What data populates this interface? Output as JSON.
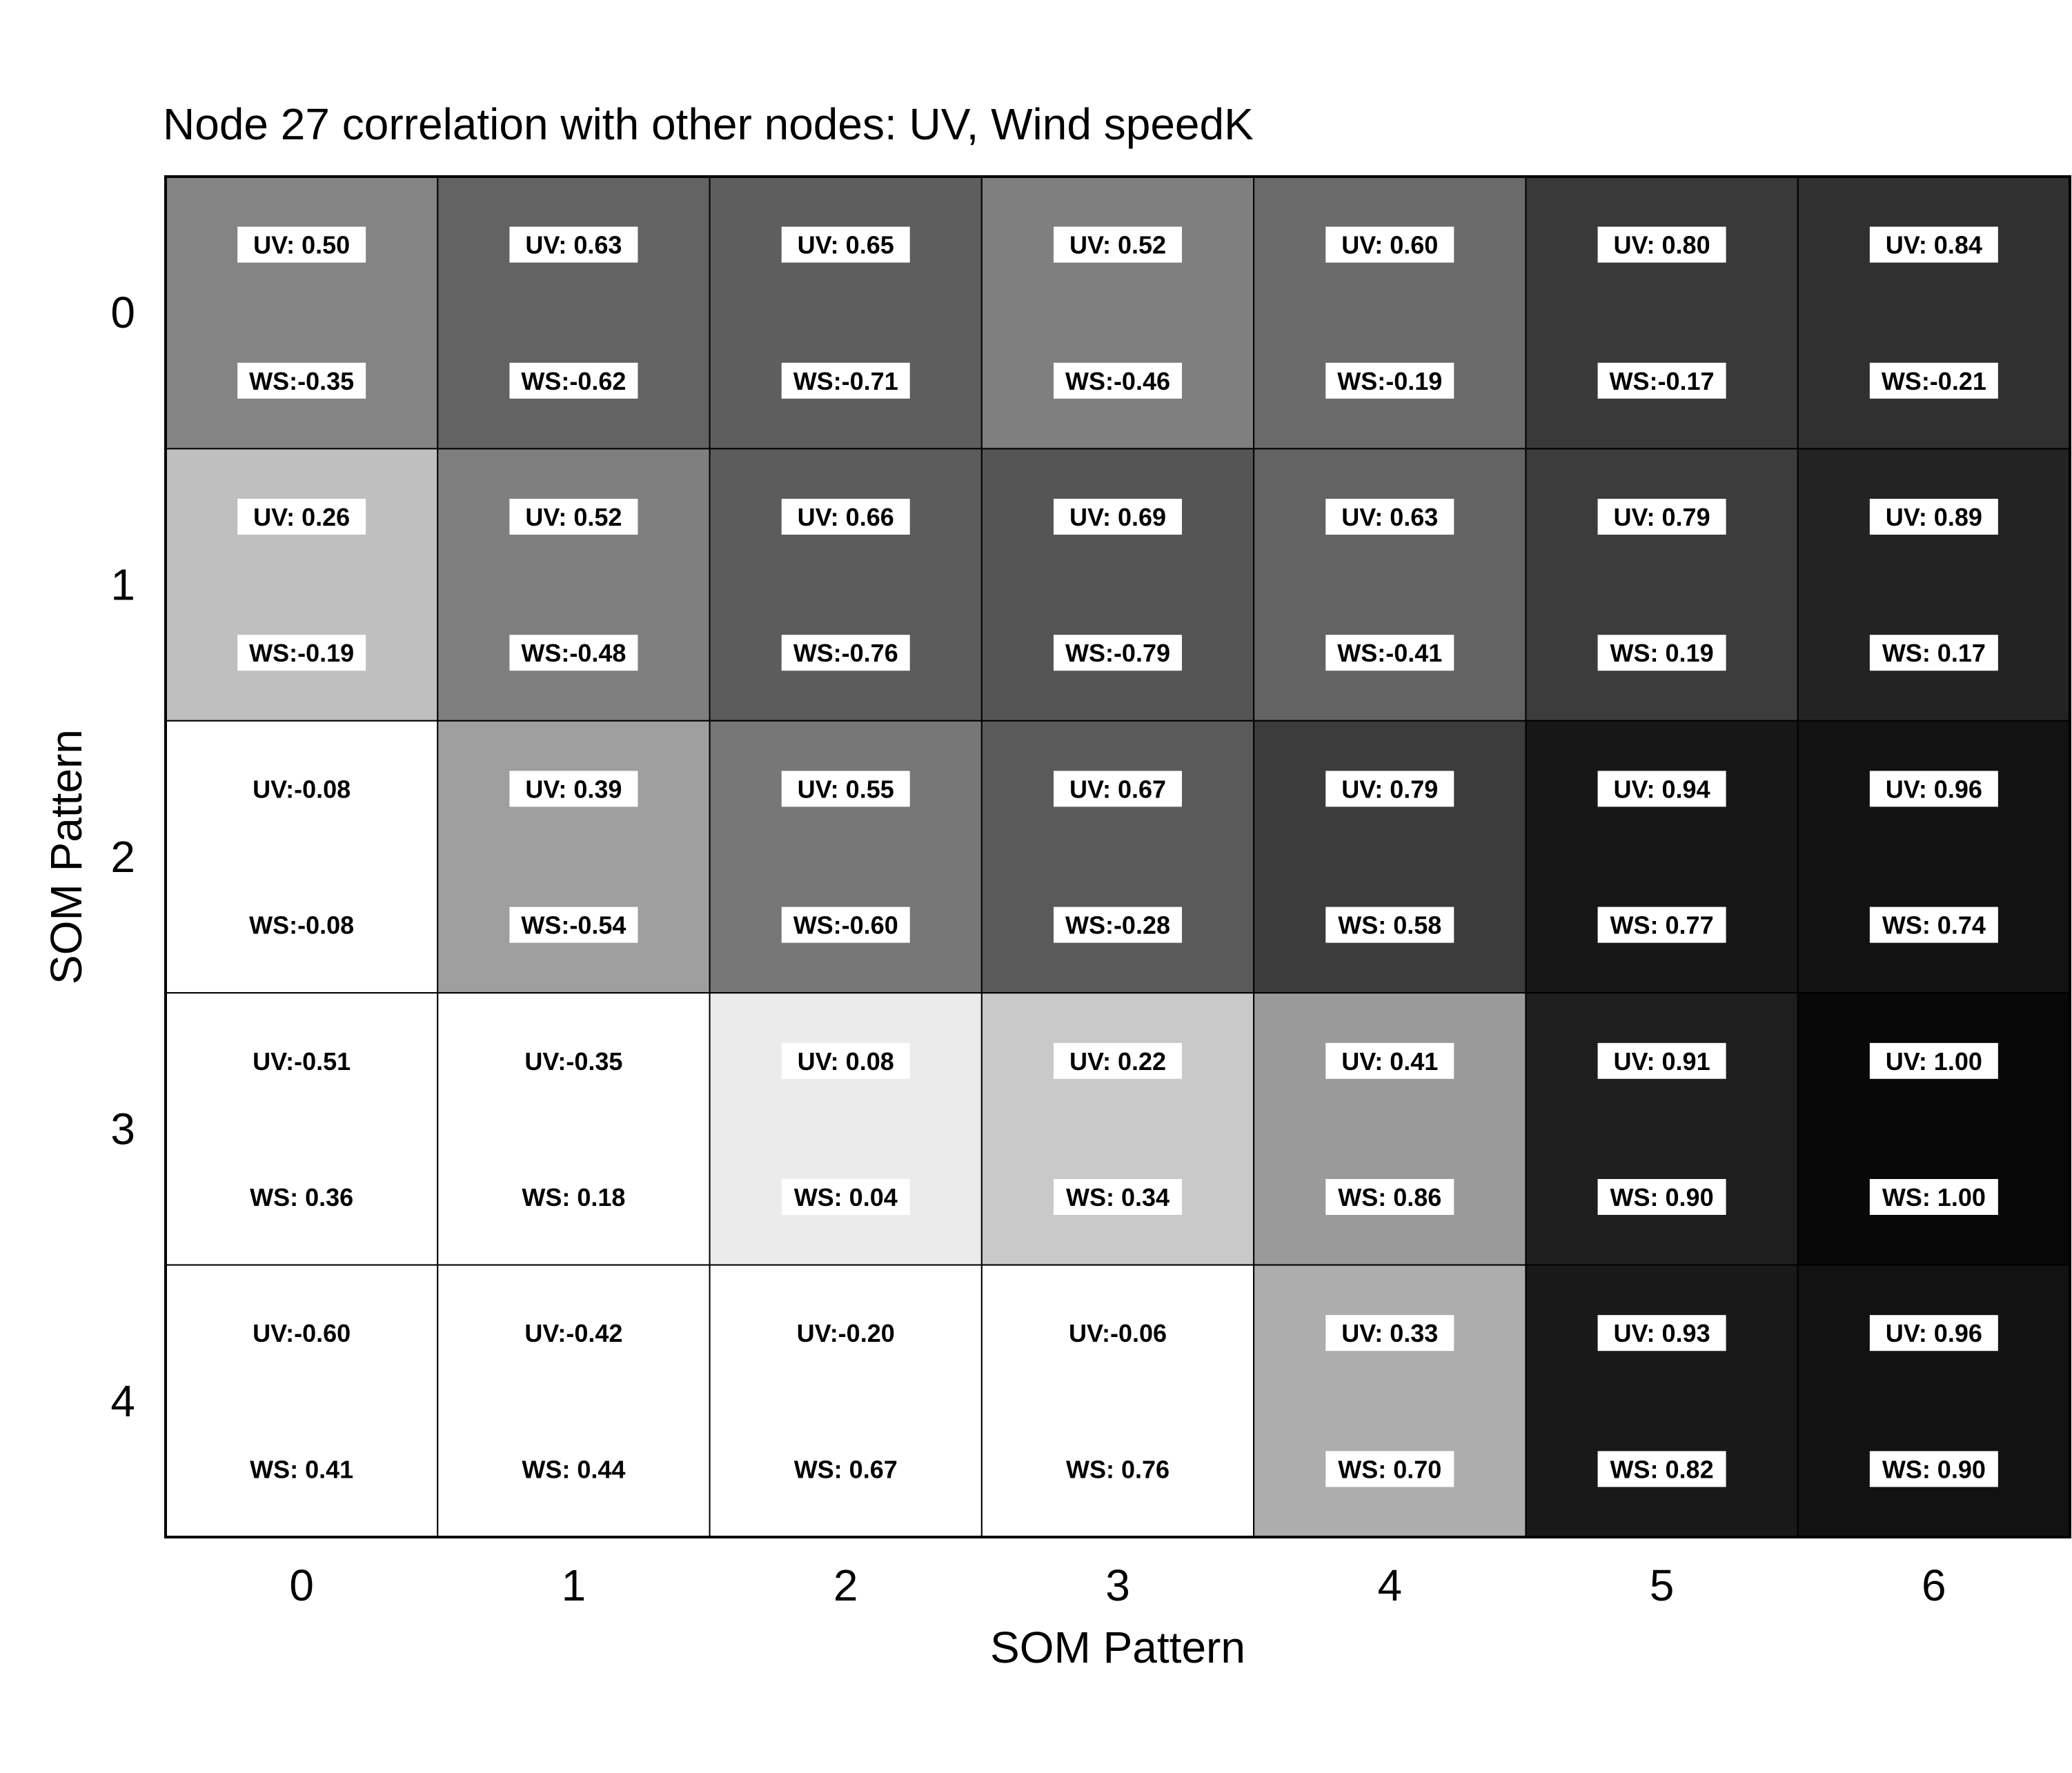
{
  "chart_data": {
    "type": "heatmap",
    "title": "Node 27 correlation with other nodes: UV, Wind speedK",
    "xlabel": "SOM Pattern",
    "ylabel": "SOM Pattern",
    "x_ticks": [
      "0",
      "1",
      "2",
      "3",
      "4",
      "5",
      "6"
    ],
    "y_ticks": [
      "0",
      "1",
      "2",
      "3",
      "4"
    ],
    "colormap": "grayscale, darker = higher UV correlation",
    "rows": [
      {
        "row": "0",
        "cells": [
          {
            "uv": 0.5,
            "ws": -0.35,
            "uv_label": "UV: 0.50",
            "ws_label": "WS:-0.35"
          },
          {
            "uv": 0.63,
            "ws": -0.62,
            "uv_label": "UV: 0.63",
            "ws_label": "WS:-0.62"
          },
          {
            "uv": 0.65,
            "ws": -0.71,
            "uv_label": "UV: 0.65",
            "ws_label": "WS:-0.71"
          },
          {
            "uv": 0.52,
            "ws": -0.46,
            "uv_label": "UV: 0.52",
            "ws_label": "WS:-0.46"
          },
          {
            "uv": 0.6,
            "ws": -0.19,
            "uv_label": "UV: 0.60",
            "ws_label": "WS:-0.19"
          },
          {
            "uv": 0.8,
            "ws": -0.17,
            "uv_label": "UV: 0.80",
            "ws_label": "WS:-0.17"
          },
          {
            "uv": 0.84,
            "ws": -0.21,
            "uv_label": "UV: 0.84",
            "ws_label": "WS:-0.21"
          }
        ]
      },
      {
        "row": "1",
        "cells": [
          {
            "uv": 0.26,
            "ws": -0.19,
            "uv_label": "UV: 0.26",
            "ws_label": "WS:-0.19"
          },
          {
            "uv": 0.52,
            "ws": -0.48,
            "uv_label": "UV: 0.52",
            "ws_label": "WS:-0.48"
          },
          {
            "uv": 0.66,
            "ws": -0.76,
            "uv_label": "UV: 0.66",
            "ws_label": "WS:-0.76"
          },
          {
            "uv": 0.69,
            "ws": -0.79,
            "uv_label": "UV: 0.69",
            "ws_label": "WS:-0.79"
          },
          {
            "uv": 0.63,
            "ws": -0.41,
            "uv_label": "UV: 0.63",
            "ws_label": "WS:-0.41"
          },
          {
            "uv": 0.79,
            "ws": 0.19,
            "uv_label": "UV: 0.79",
            "ws_label": "WS: 0.19"
          },
          {
            "uv": 0.89,
            "ws": 0.17,
            "uv_label": "UV: 0.89",
            "ws_label": "WS: 0.17"
          }
        ]
      },
      {
        "row": "2",
        "cells": [
          {
            "uv": -0.08,
            "ws": -0.08,
            "uv_label": "UV:-0.08",
            "ws_label": "WS:-0.08"
          },
          {
            "uv": 0.39,
            "ws": -0.54,
            "uv_label": "UV: 0.39",
            "ws_label": "WS:-0.54"
          },
          {
            "uv": 0.55,
            "ws": -0.6,
            "uv_label": "UV: 0.55",
            "ws_label": "WS:-0.60"
          },
          {
            "uv": 0.67,
            "ws": -0.28,
            "uv_label": "UV: 0.67",
            "ws_label": "WS:-0.28"
          },
          {
            "uv": 0.79,
            "ws": 0.58,
            "uv_label": "UV: 0.79",
            "ws_label": "WS: 0.58"
          },
          {
            "uv": 0.94,
            "ws": 0.77,
            "uv_label": "UV: 0.94",
            "ws_label": "WS: 0.77"
          },
          {
            "uv": 0.96,
            "ws": 0.74,
            "uv_label": "UV: 0.96",
            "ws_label": "WS: 0.74"
          }
        ]
      },
      {
        "row": "3",
        "cells": [
          {
            "uv": -0.51,
            "ws": 0.36,
            "uv_label": "UV:-0.51",
            "ws_label": "WS: 0.36"
          },
          {
            "uv": -0.35,
            "ws": 0.18,
            "uv_label": "UV:-0.35",
            "ws_label": "WS: 0.18"
          },
          {
            "uv": 0.08,
            "ws": 0.04,
            "uv_label": "UV: 0.08",
            "ws_label": "WS: 0.04"
          },
          {
            "uv": 0.22,
            "ws": 0.34,
            "uv_label": "UV: 0.22",
            "ws_label": "WS: 0.34"
          },
          {
            "uv": 0.41,
            "ws": 0.86,
            "uv_label": "UV: 0.41",
            "ws_label": "WS: 0.86"
          },
          {
            "uv": 0.91,
            "ws": 0.9,
            "uv_label": "UV: 0.91",
            "ws_label": "WS: 0.90"
          },
          {
            "uv": 1.0,
            "ws": 1.0,
            "uv_label": "UV: 1.00",
            "ws_label": "WS: 1.00"
          }
        ]
      },
      {
        "row": "4",
        "cells": [
          {
            "uv": -0.6,
            "ws": 0.41,
            "uv_label": "UV:-0.60",
            "ws_label": "WS: 0.41"
          },
          {
            "uv": -0.42,
            "ws": 0.44,
            "uv_label": "UV:-0.42",
            "ws_label": "WS: 0.44"
          },
          {
            "uv": -0.2,
            "ws": 0.67,
            "uv_label": "UV:-0.20",
            "ws_label": "WS: 0.67"
          },
          {
            "uv": -0.06,
            "ws": 0.76,
            "uv_label": "UV:-0.06",
            "ws_label": "WS: 0.76"
          },
          {
            "uv": 0.33,
            "ws": 0.7,
            "uv_label": "UV: 0.33",
            "ws_label": "WS: 0.70"
          },
          {
            "uv": 0.93,
            "ws": 0.82,
            "uv_label": "UV: 0.93",
            "ws_label": "WS: 0.82"
          },
          {
            "uv": 0.96,
            "ws": 0.9,
            "uv_label": "UV: 0.96",
            "ws_label": "WS: 0.90"
          }
        ]
      }
    ]
  }
}
